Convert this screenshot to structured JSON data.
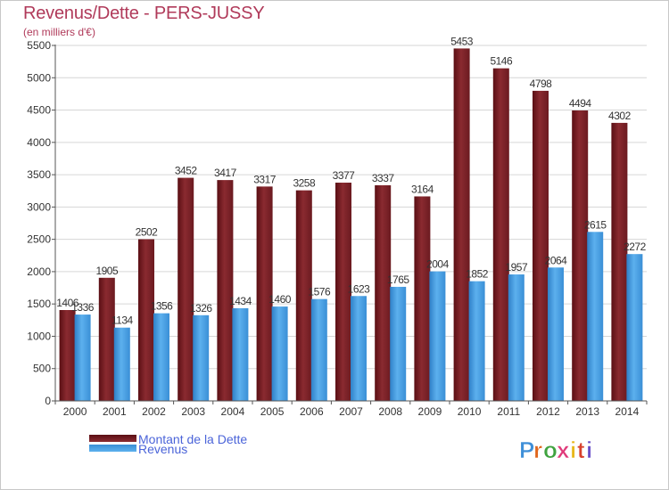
{
  "title": "Revenus/Dette - PERS-JUSSY",
  "subtitle": "(en milliers d'€)",
  "legend": {
    "debt_label": "Montant de la Dette",
    "revenue_label": "Revenus"
  },
  "logo_text": "Proxiti",
  "colors": {
    "debt": "#7a1f24",
    "revenue": "#4b9fe0",
    "title": "#b03a5a",
    "legend_text": "#4b64d9"
  },
  "chart_data": {
    "type": "bar",
    "categories": [
      "2000",
      "2001",
      "2002",
      "2003",
      "2004",
      "2005",
      "2006",
      "2007",
      "2008",
      "2009",
      "2010",
      "2011",
      "2012",
      "2013",
      "2014"
    ],
    "series": [
      {
        "name": "Montant de la Dette",
        "values": [
          1406,
          1905,
          2502,
          3452,
          3417,
          3317,
          3258,
          3377,
          3337,
          3164,
          5453,
          5146,
          4798,
          4494,
          4302
        ]
      },
      {
        "name": "Revenus",
        "values": [
          1336,
          1134,
          1356,
          1326,
          1434,
          1460,
          1576,
          1623,
          1765,
          2004,
          1852,
          1957,
          2064,
          2615,
          2272
        ]
      }
    ],
    "yticks": [
      0,
      500,
      1000,
      1500,
      2000,
      2500,
      3000,
      3500,
      4000,
      4500,
      5000,
      5500
    ],
    "ylim": [
      0,
      5500
    ],
    "grid": true,
    "legend_position": "bottom-left"
  }
}
